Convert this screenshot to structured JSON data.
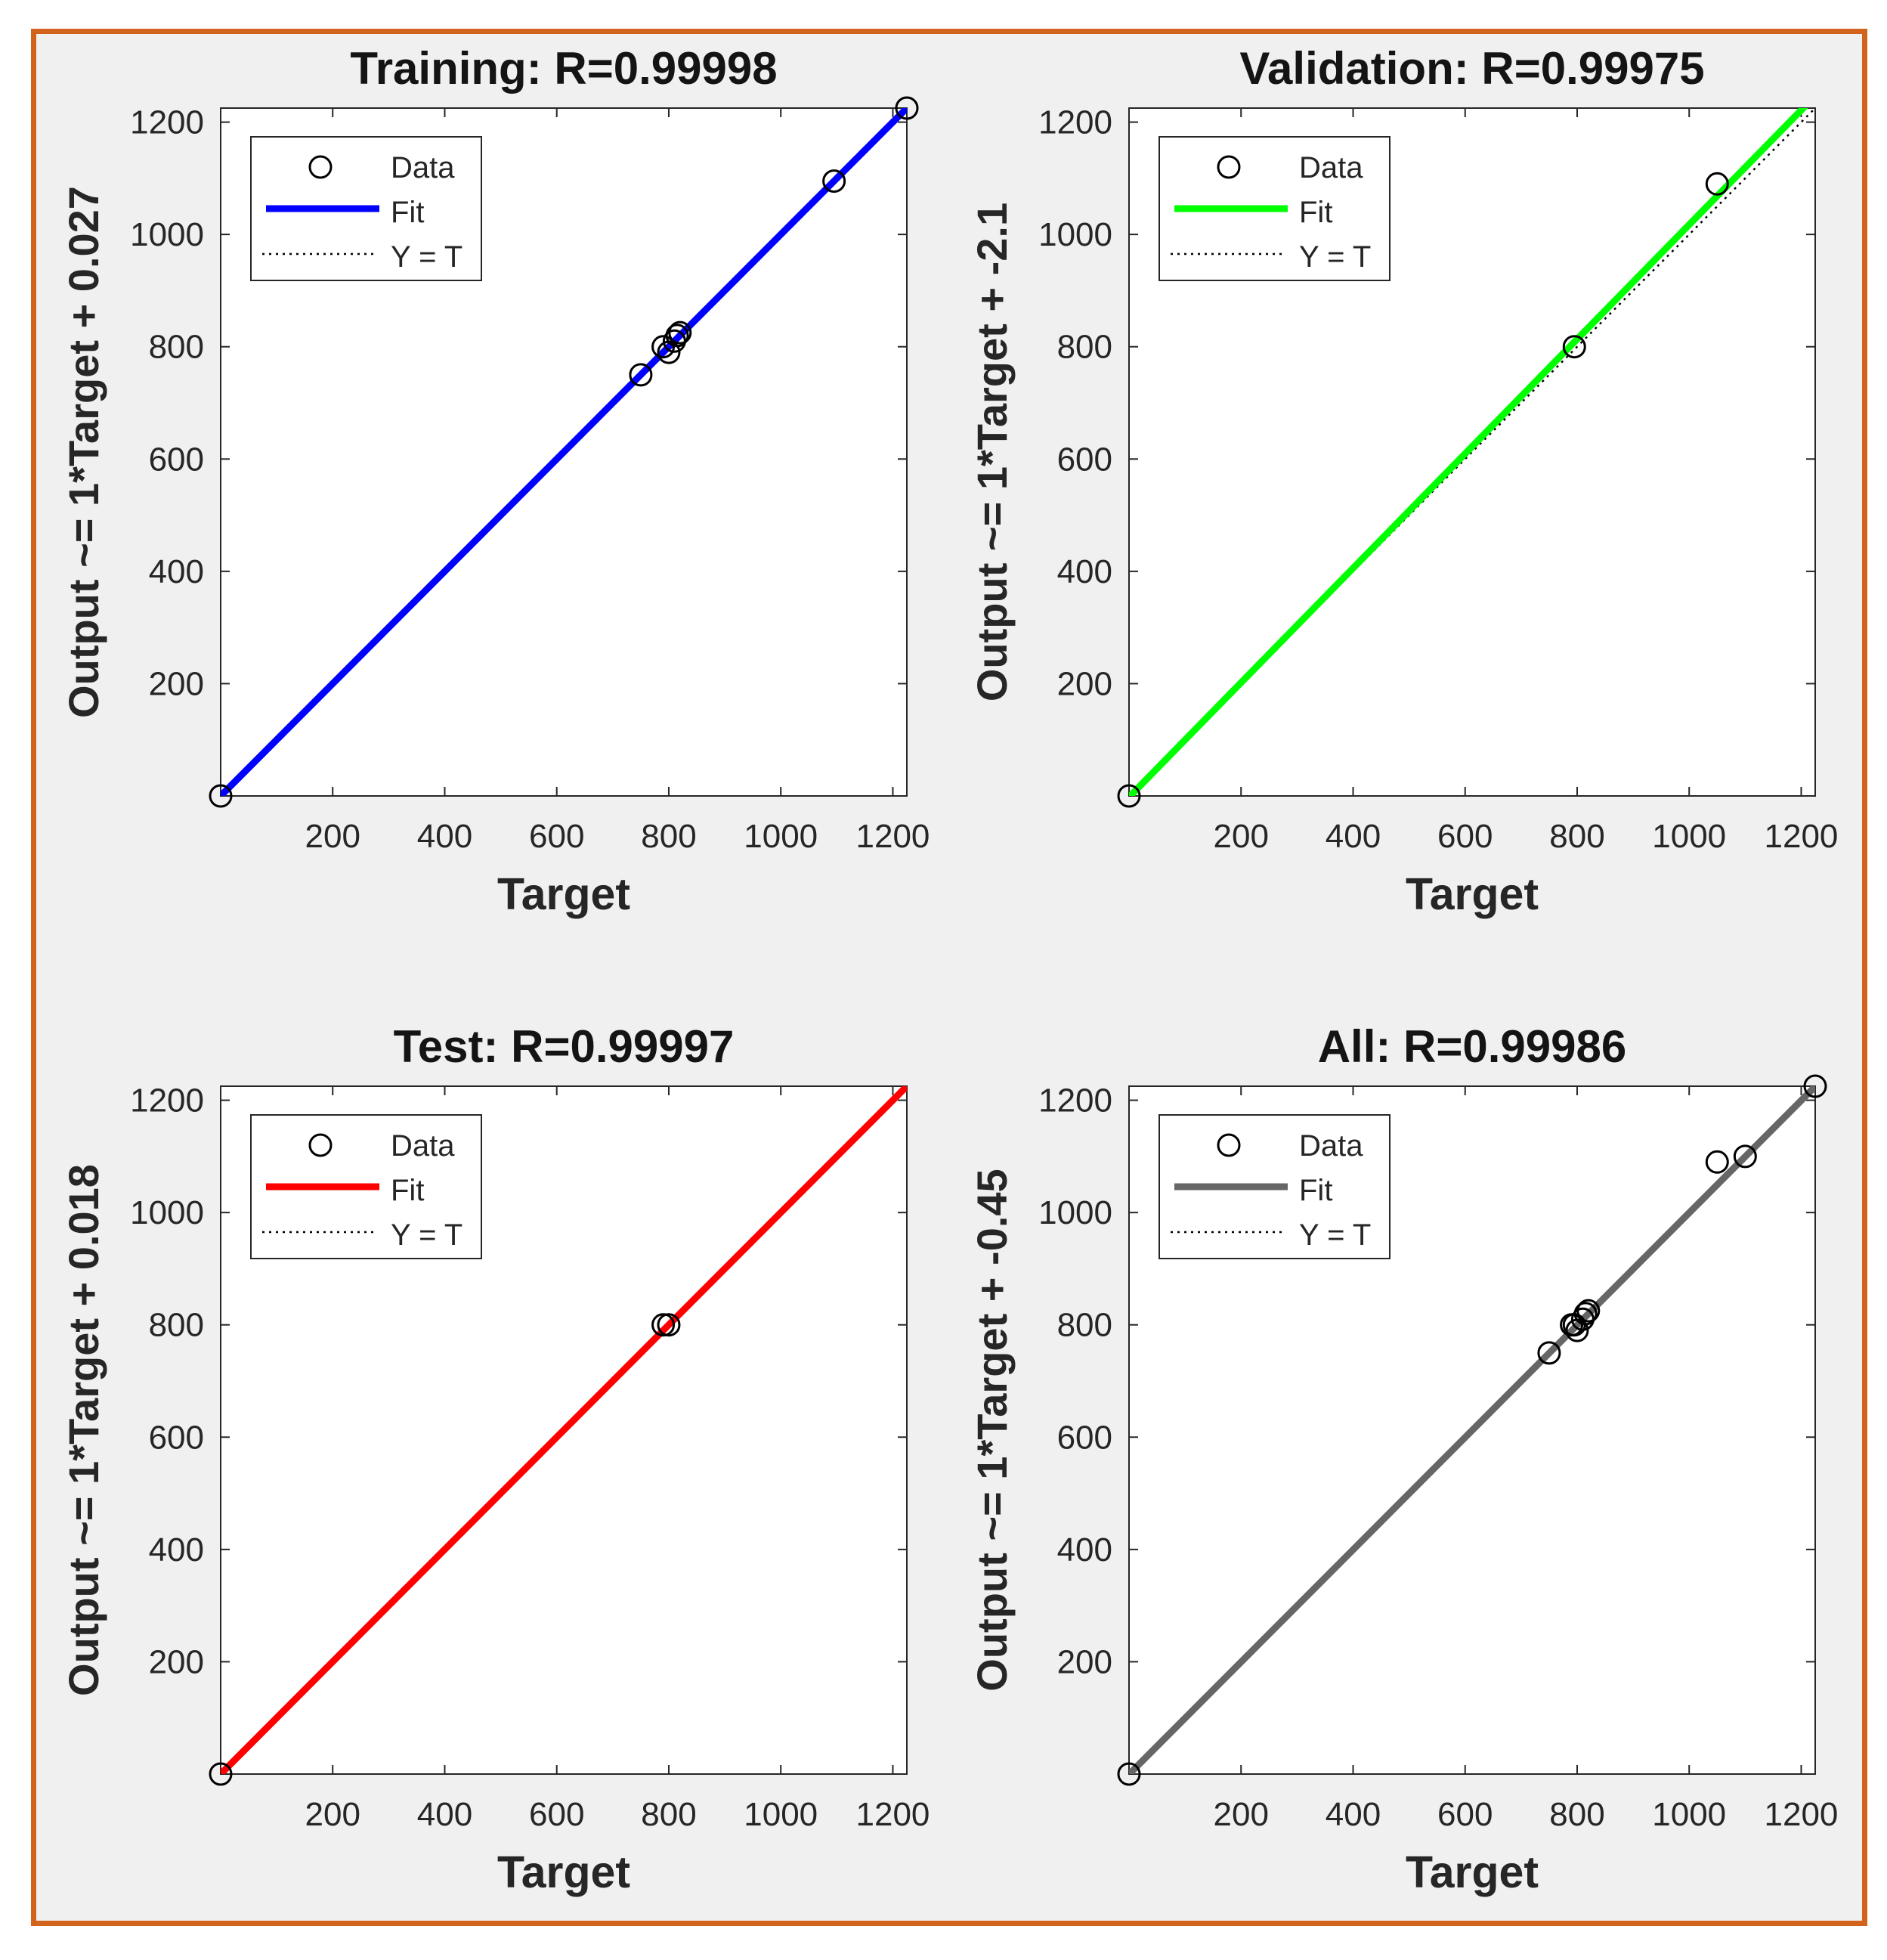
{
  "colors": {
    "border": "#d2631c",
    "background": "#f0f0f0",
    "reference": "#000000"
  },
  "legend": {
    "data_label": "Data",
    "fit_label": "Fit",
    "ref_label": "Y = T",
    "placement": "top-left"
  },
  "chart_data": [
    {
      "type": "scatter",
      "title": "Training: R=0.99998",
      "xlabel": "Target",
      "ylabel": "Output ~= 1*Target + 0.027",
      "xlim": [
        0,
        1225
      ],
      "ylim": [
        0,
        1225
      ],
      "xticks": [
        200,
        400,
        600,
        800,
        1000,
        1200
      ],
      "yticks": [
        200,
        400,
        600,
        800,
        1000,
        1200
      ],
      "grid": false,
      "fit_color": "#0000ff",
      "fit": {
        "slope": 1,
        "intercept": 0.027
      },
      "points": [
        [
          0,
          0
        ],
        [
          750,
          750
        ],
        [
          790,
          800
        ],
        [
          800,
          790
        ],
        [
          810,
          810
        ],
        [
          815,
          820
        ],
        [
          820,
          825
        ],
        [
          1095,
          1095
        ],
        [
          1225,
          1225
        ]
      ]
    },
    {
      "type": "scatter",
      "title": "Validation: R=0.99975",
      "xlabel": "Target",
      "ylabel": "Output ~= 1*Target + -2.1",
      "xlim": [
        0,
        1225
      ],
      "ylim": [
        0,
        1225
      ],
      "xticks": [
        200,
        400,
        600,
        800,
        1000,
        1200
      ],
      "yticks": [
        200,
        400,
        600,
        800,
        1000,
        1200
      ],
      "grid": false,
      "fit_color": "#00ff00",
      "fit": {
        "slope": 1.0195,
        "intercept": -2.1
      },
      "points": [
        [
          0,
          0
        ],
        [
          795,
          800
        ],
        [
          1050,
          1090
        ]
      ]
    },
    {
      "type": "scatter",
      "title": "Test: R=0.99997",
      "xlabel": "Target",
      "ylabel": "Output ~= 1*Target + 0.018",
      "xlim": [
        0,
        1225
      ],
      "ylim": [
        0,
        1225
      ],
      "xticks": [
        200,
        400,
        600,
        800,
        1000,
        1200
      ],
      "yticks": [
        200,
        400,
        600,
        800,
        1000,
        1200
      ],
      "grid": false,
      "fit_color": "#ff0000",
      "fit": {
        "slope": 1,
        "intercept": 0.018
      },
      "points": [
        [
          0,
          0
        ],
        [
          790,
          800
        ],
        [
          800,
          800
        ]
      ]
    },
    {
      "type": "scatter",
      "title": "All: R=0.99986",
      "xlabel": "Target",
      "ylabel": "Output ~= 1*Target + -0.45",
      "xlim": [
        0,
        1225
      ],
      "ylim": [
        0,
        1225
      ],
      "xticks": [
        200,
        400,
        600,
        800,
        1000,
        1200
      ],
      "yticks": [
        200,
        400,
        600,
        800,
        1000,
        1200
      ],
      "grid": false,
      "fit_color": "#666666",
      "fit": {
        "slope": 1,
        "intercept": -0.45
      },
      "points": [
        [
          0,
          0
        ],
        [
          750,
          750
        ],
        [
          790,
          800
        ],
        [
          795,
          800
        ],
        [
          800,
          790
        ],
        [
          810,
          810
        ],
        [
          815,
          820
        ],
        [
          820,
          825
        ],
        [
          1050,
          1090
        ],
        [
          1100,
          1100
        ],
        [
          1225,
          1225
        ]
      ]
    }
  ]
}
